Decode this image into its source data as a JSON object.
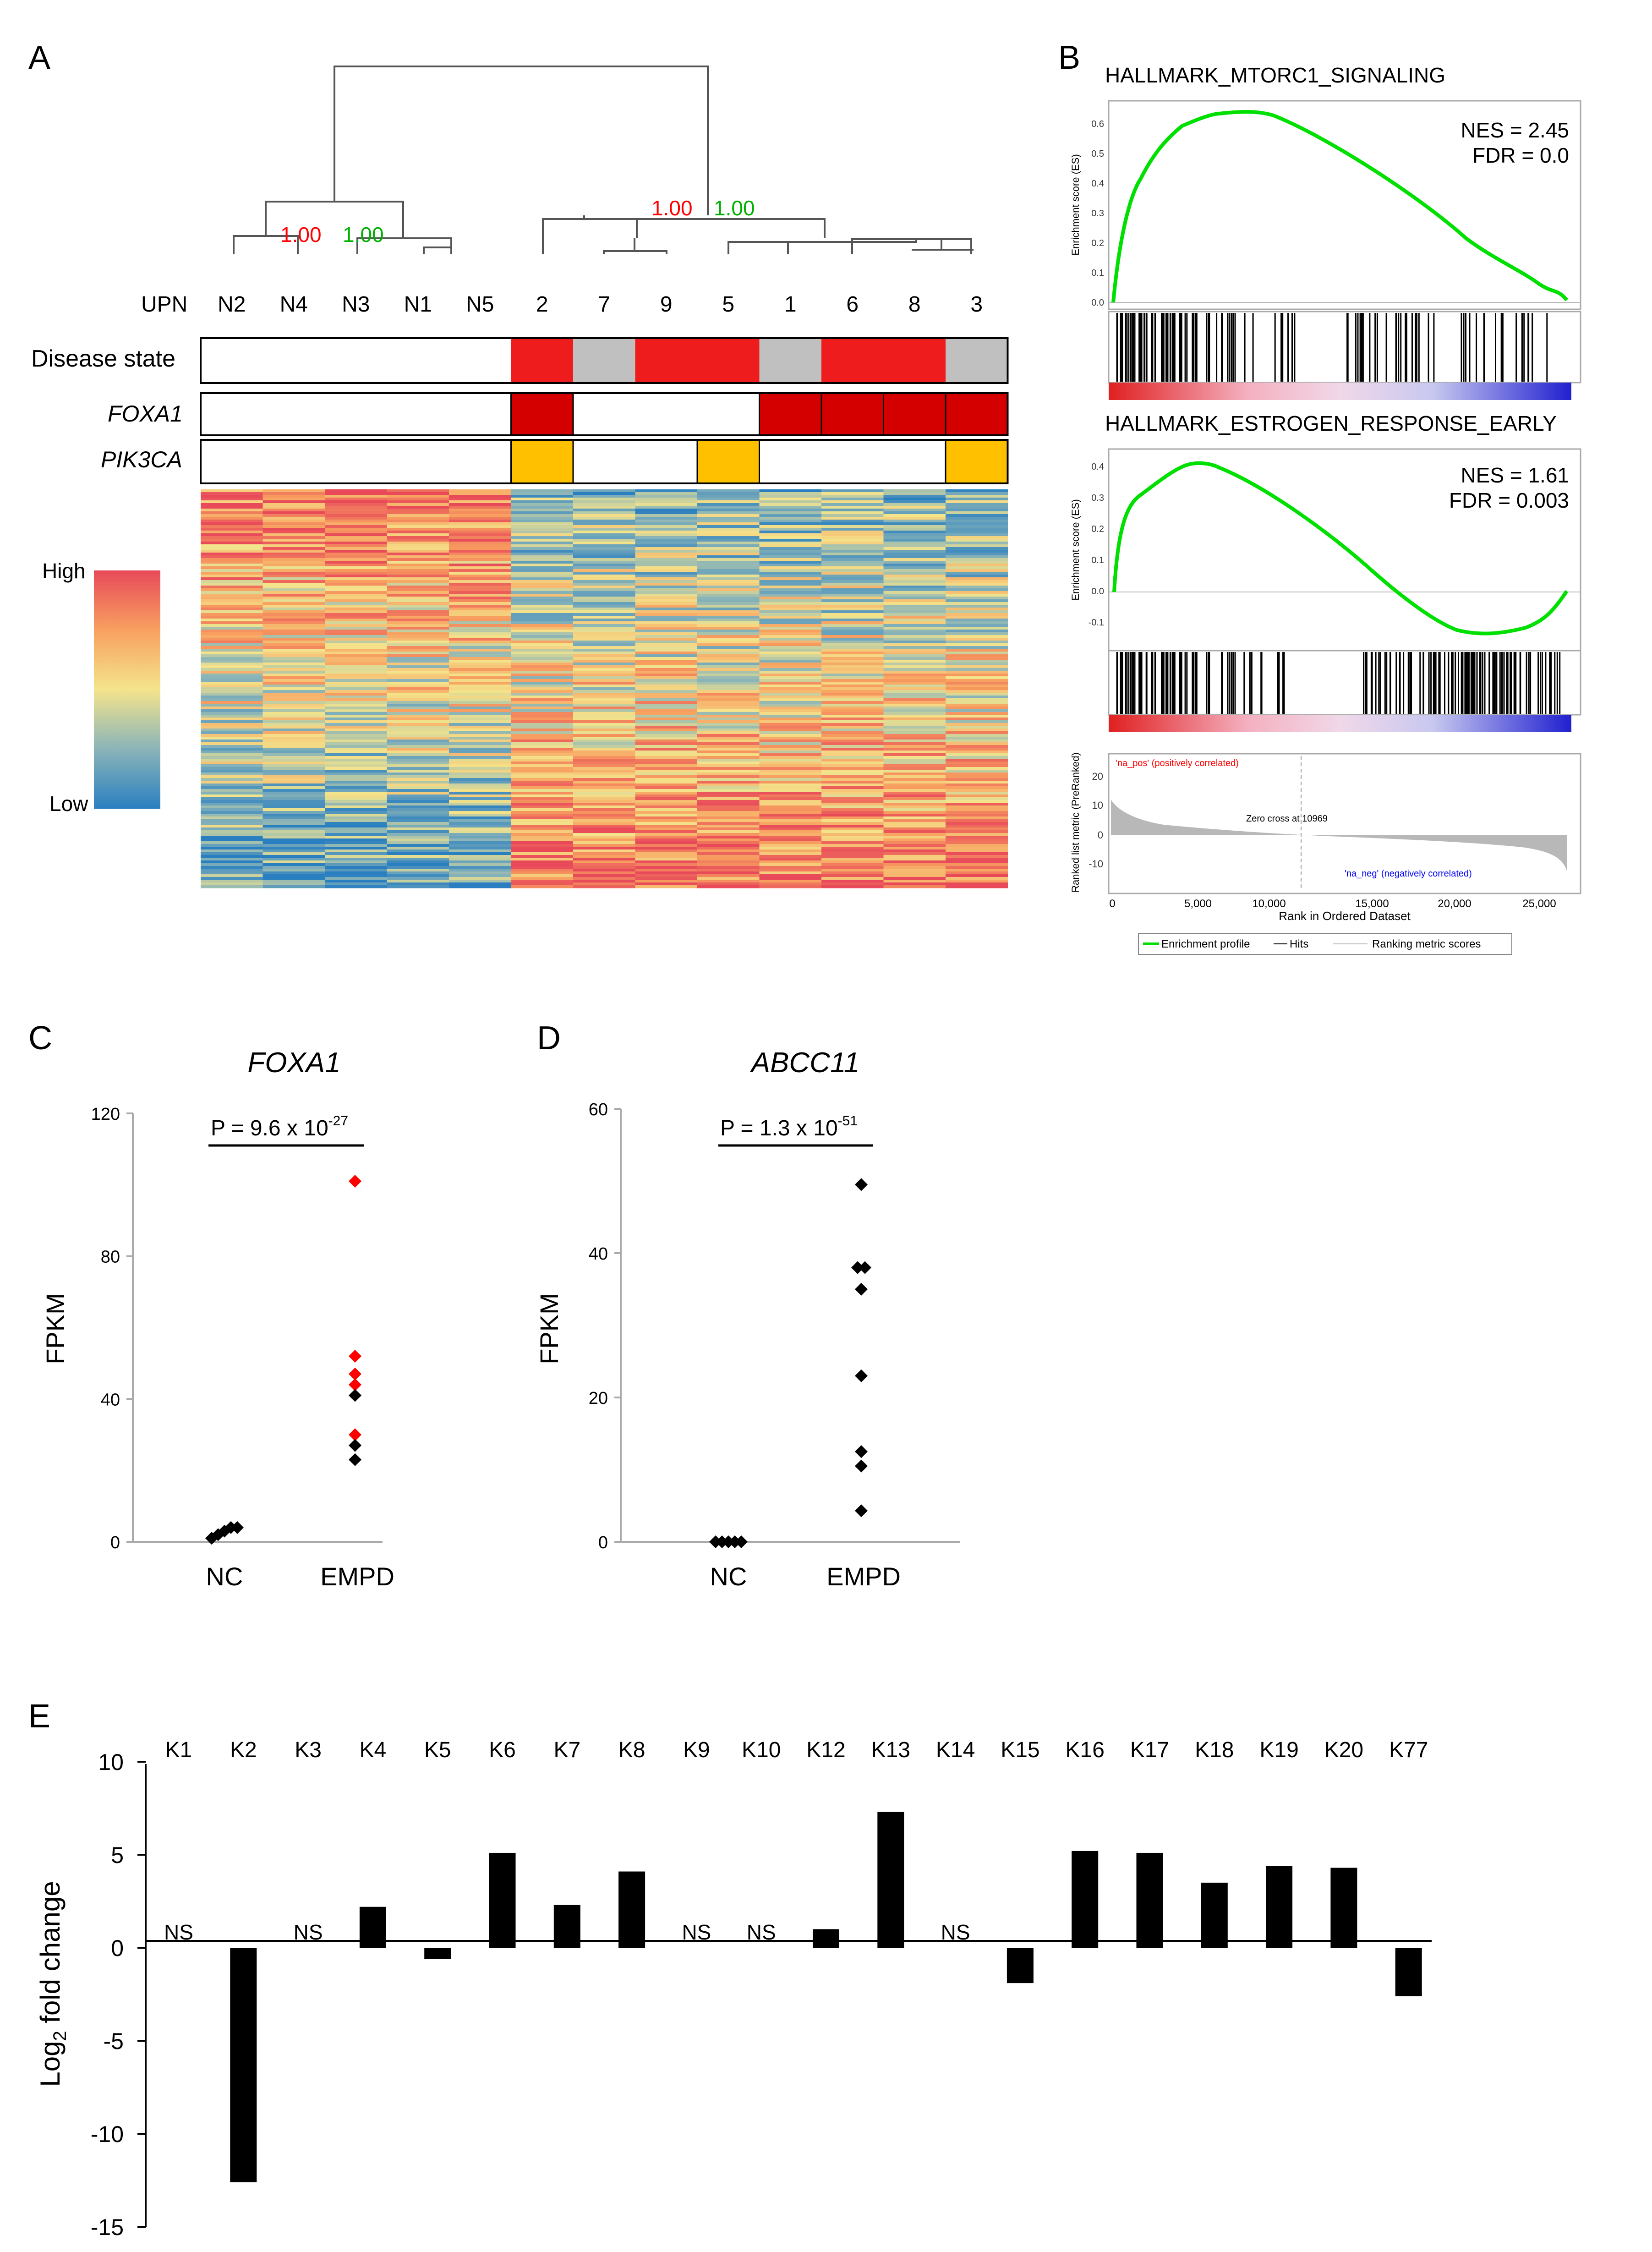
{
  "colors": {
    "red": "#ee1c1c",
    "darkred": "#d40000",
    "grey": "#c0c0c0",
    "orange": "#ffc000",
    "green": "#00e000",
    "label_red": "#ff0000",
    "label_green": "#00b000",
    "blue": "#2a7fc0"
  },
  "panelA": {
    "label": "A",
    "node_left": {
      "a": "1.00",
      "b": "1.00"
    },
    "node_right": {
      "a": "1.00",
      "b": "1.00"
    },
    "upn_label": "UPN",
    "upns": [
      "N2",
      "N4",
      "N3",
      "N1",
      "N5",
      "2",
      "7",
      "9",
      "5",
      "1",
      "6",
      "8",
      "3"
    ],
    "disease_state_label": "Disease state",
    "disease_state": [
      "none",
      "none",
      "none",
      "none",
      "none",
      "red",
      "grey",
      "red",
      "red",
      "grey",
      "red",
      "red",
      "grey"
    ],
    "foxa1_label": "FOXA1",
    "foxa1": [
      "none",
      "none",
      "none",
      "none",
      "none",
      "mut",
      "none",
      "none",
      "none",
      "mut",
      "mut",
      "mut",
      "mut"
    ],
    "pik3ca_label": "PIK3CA",
    "pik3ca": [
      "none",
      "none",
      "none",
      "none",
      "none",
      "mut",
      "none",
      "none",
      "mut",
      "none",
      "none",
      "none",
      "mut"
    ],
    "legend_high": "High",
    "legend_low": "Low"
  },
  "panelB": {
    "label": "B",
    "plot1": {
      "title": "HALLMARK_MTORC1_SIGNALING",
      "nes": "NES = 2.45",
      "fdr": "FDR = 0.0",
      "yticks": [
        "0.6",
        "0.5",
        "0.4",
        "0.3",
        "0.2",
        "0.1",
        "0.0"
      ]
    },
    "plot2": {
      "title": "HALLMARK_ESTROGEN_RESPONSE_EARLY",
      "nes": "NES = 1.61",
      "fdr": "FDR = 0.003",
      "yticks": [
        "0.4",
        "0.3",
        "0.2",
        "0.1",
        "0.0",
        "-0.1"
      ]
    },
    "es_ylabel": "Enrichment score (ES)",
    "rank_ylabel": "Ranked list metric (PreRanked)",
    "rank_yticks": [
      "20",
      "10",
      "0",
      "-10"
    ],
    "na_pos": "'na_pos' (positively correlated)",
    "na_neg": "'na_neg' (negatively correlated)",
    "zero_cross": "Zero cross at 10969",
    "xticks": [
      "0",
      "5,000",
      "10,000",
      "15,000",
      "20,000",
      "25,000"
    ],
    "xlabel": "Rank in Ordered Dataset",
    "legend": {
      "profile": "Enrichment profile",
      "hits": "Hits",
      "metric": "Ranking metric scores"
    }
  },
  "chart_data": [
    {
      "type": "scatter",
      "panel": "C",
      "title": "FOXA1",
      "ylabel": "FPKM",
      "categories": [
        "NC",
        "EMPD"
      ],
      "ylim": [
        0,
        120
      ],
      "yticks": [
        "0",
        "40",
        "80",
        "120"
      ],
      "pvalue": {
        "prefix": "P = 9.6 x 10",
        "exponent": "-27"
      },
      "series": [
        {
          "name": "NC",
          "values": [
            1,
            2,
            3,
            4,
            4
          ]
        },
        {
          "name": "EMPD",
          "values": [
            101,
            52,
            47,
            44,
            41,
            30,
            27,
            23
          ],
          "colors": [
            "red",
            "red",
            "red",
            "red",
            "black",
            "red",
            "black",
            "black"
          ]
        }
      ]
    },
    {
      "type": "scatter",
      "panel": "D",
      "title": "ABCC11",
      "ylabel": "FPKM",
      "categories": [
        "NC",
        "EMPD"
      ],
      "ylim": [
        0,
        60
      ],
      "yticks": [
        "0",
        "20",
        "40",
        "60"
      ],
      "pvalue": {
        "prefix": "P = 1.3 x 10",
        "exponent": "-51"
      },
      "series": [
        {
          "name": "NC",
          "values": [
            0,
            0,
            0,
            0,
            0
          ]
        },
        {
          "name": "EMPD",
          "values": [
            49.5,
            38,
            38,
            35,
            23,
            12.5,
            10.5,
            4.3
          ]
        }
      ]
    },
    {
      "type": "bar",
      "panel": "E",
      "ylabel": "Log2 fold change",
      "ylim": [
        -15,
        10
      ],
      "yticks": [
        "10",
        "5",
        "0",
        "-5",
        "-10",
        "-15"
      ],
      "categories": [
        "K1",
        "K2",
        "K3",
        "K4",
        "K5",
        "K6",
        "K7",
        "K8",
        "K9",
        "K10",
        "K12",
        "K13",
        "K14",
        "K15",
        "K16",
        "K17",
        "K18",
        "K19",
        "K20",
        "K77"
      ],
      "values": [
        null,
        -12.6,
        null,
        2.2,
        -0.6,
        5.1,
        2.3,
        4.1,
        null,
        null,
        1.0,
        7.3,
        null,
        -1.9,
        5.2,
        5.1,
        3.5,
        4.4,
        4.3,
        -2.6
      ],
      "labels": [
        "NS",
        "",
        "NS",
        "",
        "",
        "",
        "",
        "",
        "NS",
        "NS",
        "",
        "",
        "NS",
        "",
        "",
        "",
        "",
        "",
        "",
        ""
      ]
    }
  ]
}
